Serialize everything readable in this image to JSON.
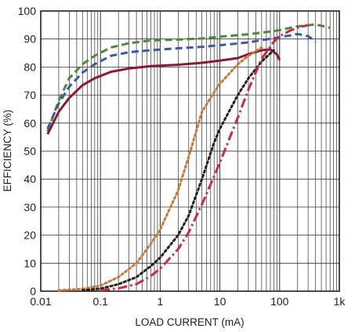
{
  "chart_data": {
    "type": "line",
    "xlabel": "LOAD CURRENT (mA)",
    "ylabel": "EFFICIENCY (%)",
    "xscale": "log",
    "xlim": [
      0.01,
      1000
    ],
    "ylim": [
      0,
      100
    ],
    "grid": true,
    "x_ticks": [
      {
        "value": 0.01,
        "label": "0.01"
      },
      {
        "value": 0.1,
        "label": "0.1"
      },
      {
        "value": 1,
        "label": "1"
      },
      {
        "value": 10,
        "label": "10"
      },
      {
        "value": 100,
        "label": "100"
      },
      {
        "value": 1000,
        "label": "1k"
      }
    ],
    "y_ticks": [
      0,
      10,
      20,
      30,
      40,
      50,
      60,
      70,
      80,
      90,
      100
    ],
    "series": [
      {
        "color": "#4a8a3a",
        "style": "dashed",
        "width": 3,
        "points": [
          [
            0.013,
            57
          ],
          [
            0.02,
            68
          ],
          [
            0.03,
            76
          ],
          [
            0.05,
            81
          ],
          [
            0.08,
            84
          ],
          [
            0.15,
            87
          ],
          [
            0.3,
            88.5
          ],
          [
            0.7,
            89.5
          ],
          [
            2,
            89.8
          ],
          [
            5,
            90.2
          ],
          [
            10,
            90.8
          ],
          [
            30,
            91.7
          ],
          [
            80,
            92.8
          ],
          [
            200,
            94.5
          ],
          [
            400,
            95.2
          ],
          [
            700,
            94
          ]
        ]
      },
      {
        "color": "#3a5aa8",
        "style": "dashed",
        "width": 3,
        "points": [
          [
            0.013,
            58
          ],
          [
            0.02,
            67
          ],
          [
            0.03,
            73
          ],
          [
            0.05,
            78
          ],
          [
            0.08,
            81
          ],
          [
            0.15,
            84
          ],
          [
            0.3,
            85.3
          ],
          [
            0.7,
            86
          ],
          [
            2,
            86.7
          ],
          [
            5,
            87.2
          ],
          [
            10,
            87.8
          ],
          [
            30,
            88.8
          ],
          [
            80,
            90.3
          ],
          [
            150,
            91.3
          ],
          [
            200,
            91.8
          ],
          [
            300,
            91
          ],
          [
            400,
            89.2
          ]
        ]
      },
      {
        "color": "#8a1a32",
        "style": "solid",
        "width": 3,
        "points": [
          [
            0.013,
            56
          ],
          [
            0.02,
            64
          ],
          [
            0.03,
            69
          ],
          [
            0.05,
            73.5
          ],
          [
            0.08,
            76
          ],
          [
            0.15,
            78.3
          ],
          [
            0.3,
            79.5
          ],
          [
            0.7,
            80.3
          ],
          [
            2,
            80.8
          ],
          [
            5,
            81.5
          ],
          [
            10,
            82.3
          ],
          [
            20,
            83.2
          ],
          [
            30,
            84.6
          ],
          [
            50,
            86
          ],
          [
            70,
            86.3
          ],
          [
            90,
            84.5
          ],
          [
            100,
            82.5
          ]
        ]
      },
      {
        "color": "#c87838",
        "style": "dotted",
        "width": 3,
        "points": [
          [
            0.02,
            0.3
          ],
          [
            0.05,
            0.8
          ],
          [
            0.1,
            2
          ],
          [
            0.2,
            5
          ],
          [
            0.4,
            10
          ],
          [
            0.7,
            17
          ],
          [
            1,
            22
          ],
          [
            2,
            36
          ],
          [
            3,
            48
          ],
          [
            5,
            64
          ],
          [
            8,
            71
          ],
          [
            10,
            74
          ],
          [
            20,
            81
          ],
          [
            30,
            84
          ],
          [
            50,
            87
          ]
        ]
      },
      {
        "color": "#222222",
        "style": "dotted",
        "width": 3,
        "points": [
          [
            0.05,
            0.3
          ],
          [
            0.1,
            0.9
          ],
          [
            0.2,
            2.5
          ],
          [
            0.4,
            5
          ],
          [
            0.7,
            9
          ],
          [
            1,
            12
          ],
          [
            2,
            20
          ],
          [
            3,
            27
          ],
          [
            5,
            40
          ],
          [
            8,
            53
          ],
          [
            10,
            58
          ],
          [
            20,
            70
          ],
          [
            30,
            76
          ],
          [
            50,
            82
          ],
          [
            80,
            86
          ]
        ]
      },
      {
        "color": "#d02840",
        "style": "dashdot",
        "width": 3,
        "points": [
          [
            0.1,
            0.3
          ],
          [
            0.2,
            1
          ],
          [
            0.4,
            2.5
          ],
          [
            0.7,
            5.5
          ],
          [
            1,
            8
          ],
          [
            2,
            15
          ],
          [
            3,
            21
          ],
          [
            5,
            31
          ],
          [
            8,
            41
          ],
          [
            10,
            46
          ],
          [
            20,
            62
          ],
          [
            30,
            72
          ],
          [
            50,
            83
          ],
          [
            80,
            89
          ],
          [
            100,
            91
          ],
          [
            150,
            93
          ],
          [
            200,
            94
          ],
          [
            300,
            95
          ]
        ]
      }
    ]
  }
}
